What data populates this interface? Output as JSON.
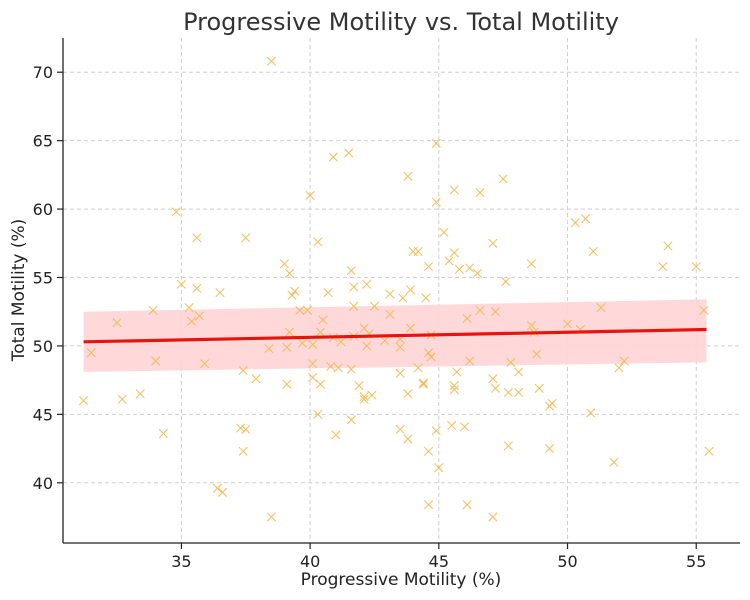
{
  "chart_data": {
    "type": "scatter",
    "title": "Progressive Motility vs. Total Motility",
    "xlabel": "Progressive Motility (%)",
    "ylabel": "Total Motility (%)",
    "xlim": [
      30.4,
      56.7
    ],
    "ylim": [
      35.6,
      72.5
    ],
    "xticks": [
      35,
      40,
      45,
      50,
      55
    ],
    "yticks": [
      40,
      45,
      50,
      55,
      60,
      65,
      70
    ],
    "grid": true,
    "marker": "x",
    "point_color": "#f5b64a",
    "line_color": "#e8140c",
    "band_color": "#ffd5d5",
    "regression": {
      "x": [
        31.2,
        55.4
      ],
      "y": [
        50.3,
        51.2
      ],
      "ci_upper": [
        52.5,
        53.4
      ],
      "ci_lower": [
        48.1,
        48.8
      ]
    },
    "points": [
      [
        38.5,
        70.8
      ],
      [
        44.9,
        64.8
      ],
      [
        41.5,
        64.1
      ],
      [
        40.9,
        63.8
      ],
      [
        43.8,
        62.4
      ],
      [
        47.5,
        62.2
      ],
      [
        45.6,
        61.4
      ],
      [
        46.6,
        61.2
      ],
      [
        40.0,
        61.0
      ],
      [
        44.9,
        60.5
      ],
      [
        34.8,
        59.8
      ],
      [
        50.7,
        59.3
      ],
      [
        50.3,
        59.0
      ],
      [
        45.2,
        58.3
      ],
      [
        35.6,
        57.9
      ],
      [
        37.5,
        57.9
      ],
      [
        40.3,
        57.6
      ],
      [
        47.1,
        57.5
      ],
      [
        53.9,
        57.3
      ],
      [
        51.0,
        56.9
      ],
      [
        44.0,
        56.9
      ],
      [
        45.6,
        56.8
      ],
      [
        44.2,
        56.9
      ],
      [
        39.0,
        56.0
      ],
      [
        45.4,
        56.2
      ],
      [
        48.6,
        56.0
      ],
      [
        44.6,
        55.8
      ],
      [
        45.8,
        55.6
      ],
      [
        46.2,
        55.7
      ],
      [
        53.7,
        55.8
      ],
      [
        55.0,
        55.8
      ],
      [
        39.2,
        55.3
      ],
      [
        41.6,
        55.5
      ],
      [
        46.5,
        55.3
      ],
      [
        47.6,
        54.7
      ],
      [
        35.0,
        54.5
      ],
      [
        42.2,
        54.5
      ],
      [
        35.6,
        54.2
      ],
      [
        39.4,
        54.0
      ],
      [
        41.7,
        54.3
      ],
      [
        39.3,
        53.7
      ],
      [
        40.7,
        53.9
      ],
      [
        43.9,
        54.1
      ],
      [
        43.6,
        53.5
      ],
      [
        44.5,
        53.5
      ],
      [
        36.5,
        53.9
      ],
      [
        43.1,
        53.8
      ],
      [
        41.7,
        52.9
      ],
      [
        35.3,
        52.8
      ],
      [
        42.5,
        52.9
      ],
      [
        39.6,
        52.6
      ],
      [
        39.9,
        52.6
      ],
      [
        43.1,
        52.3
      ],
      [
        35.7,
        52.2
      ],
      [
        46.6,
        52.6
      ],
      [
        51.3,
        52.8
      ],
      [
        55.3,
        52.6
      ],
      [
        47.2,
        52.5
      ],
      [
        33.9,
        52.6
      ],
      [
        35.4,
        51.8
      ],
      [
        46.1,
        52.0
      ],
      [
        40.5,
        51.9
      ],
      [
        32.5,
        51.7
      ],
      [
        42.1,
        51.3
      ],
      [
        43.9,
        51.3
      ],
      [
        48.6,
        51.5
      ],
      [
        50.0,
        51.6
      ],
      [
        50.5,
        51.2
      ],
      [
        39.2,
        51.0
      ],
      [
        40.4,
        51.0
      ],
      [
        42.3,
        50.9
      ],
      [
        44.7,
        50.8
      ],
      [
        48.7,
        51.0
      ],
      [
        41.7,
        50.7
      ],
      [
        42.9,
        50.4
      ],
      [
        43.5,
        50.5
      ],
      [
        40.9,
        50.6
      ],
      [
        39.7,
        50.2
      ],
      [
        41.2,
        50.3
      ],
      [
        42.2,
        50.0
      ],
      [
        43.5,
        49.9
      ],
      [
        40.1,
        50.1
      ],
      [
        38.4,
        49.8
      ],
      [
        39.1,
        49.9
      ],
      [
        31.5,
        49.5
      ],
      [
        44.6,
        49.5
      ],
      [
        48.8,
        49.4
      ],
      [
        44.7,
        49.2
      ],
      [
        34.0,
        48.9
      ],
      [
        35.9,
        48.7
      ],
      [
        46.2,
        48.9
      ],
      [
        47.8,
        48.8
      ],
      [
        40.8,
        48.5
      ],
      [
        41.1,
        48.4
      ],
      [
        41.6,
        48.3
      ],
      [
        44.2,
        48.4
      ],
      [
        40.1,
        48.7
      ],
      [
        45.7,
        48.1
      ],
      [
        52.0,
        48.4
      ],
      [
        52.2,
        48.9
      ],
      [
        37.4,
        48.2
      ],
      [
        43.5,
        48.0
      ],
      [
        48.1,
        48.1
      ],
      [
        40.1,
        47.7
      ],
      [
        47.1,
        47.6
      ],
      [
        37.9,
        47.6
      ],
      [
        44.4,
        47.2
      ],
      [
        45.6,
        47.1
      ],
      [
        39.1,
        47.2
      ],
      [
        40.4,
        47.2
      ],
      [
        41.9,
        47.1
      ],
      [
        44.4,
        47.3
      ],
      [
        45.6,
        46.8
      ],
      [
        47.2,
        46.9
      ],
      [
        47.7,
        46.6
      ],
      [
        48.1,
        46.6
      ],
      [
        48.9,
        46.9
      ],
      [
        42.1,
        46.3
      ],
      [
        42.4,
        46.4
      ],
      [
        43.8,
        46.5
      ],
      [
        33.4,
        46.5
      ],
      [
        32.7,
        46.1
      ],
      [
        31.2,
        46.0
      ],
      [
        42.1,
        46.1
      ],
      [
        49.3,
        45.6
      ],
      [
        49.4,
        45.8
      ],
      [
        50.9,
        45.1
      ],
      [
        40.3,
        45.0
      ],
      [
        41.6,
        44.6
      ],
      [
        45.5,
        44.2
      ],
      [
        46.0,
        44.1
      ],
      [
        37.3,
        44.0
      ],
      [
        37.5,
        43.9
      ],
      [
        43.5,
        43.9
      ],
      [
        44.9,
        43.8
      ],
      [
        34.3,
        43.6
      ],
      [
        41.0,
        43.5
      ],
      [
        43.8,
        43.2
      ],
      [
        47.7,
        42.7
      ],
      [
        49.3,
        42.5
      ],
      [
        55.5,
        42.3
      ],
      [
        37.4,
        42.3
      ],
      [
        44.6,
        42.3
      ],
      [
        51.8,
        41.5
      ],
      [
        45.0,
        41.1
      ],
      [
        36.4,
        39.6
      ],
      [
        36.6,
        39.3
      ],
      [
        46.1,
        38.4
      ],
      [
        44.6,
        38.4
      ],
      [
        38.5,
        37.5
      ],
      [
        47.1,
        37.5
      ]
    ]
  }
}
